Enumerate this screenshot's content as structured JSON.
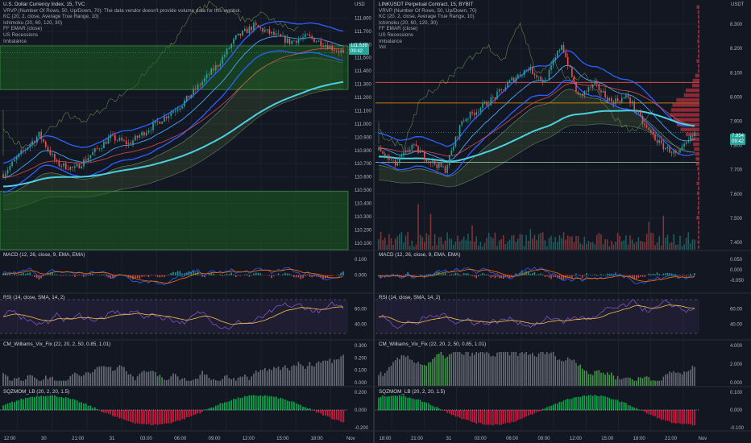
{
  "colors": {
    "background": "#131722",
    "grid": "#1e222d",
    "panel_separator": "#2a2e39",
    "up_candle": "#26a69a",
    "down_candle": "#ef5350",
    "keltner": "#2962ff",
    "ema_cyan": "#4dd0e1",
    "ichimoku_cloud": "#8bc34a",
    "macd_line": "#2962ff",
    "signal_line": "#ff6d00",
    "rsi_line": "#7e57c2",
    "rsi_ma": "#f6c343",
    "vix_gray": "#787b86",
    "vix_green": "#4caf50",
    "sqz_green": "#00c853",
    "sqz_red": "#ff1744",
    "price_tag": "#26a69a",
    "volume_profile": "#f23645"
  },
  "left": {
    "title": "U.S. Dollar Currency Index, 15, TVC",
    "indicators": [
      "VRVP (Number Of Rows, 50, Up/Down, 70): The data vendor doesn't provide volume data for this symbol.",
      "KC (20, 2, close, Average True Range, 10)",
      "Ichimoku (20, 60, 120, 30)",
      "FF EMAR (close)",
      "US Recessions",
      "Imbalance"
    ],
    "currency": "USD",
    "price_axis": [
      "111.800",
      "111.700",
      "111.600",
      "111.500",
      "111.400",
      "111.300",
      "111.200",
      "111.100",
      "111.000",
      "110.900",
      "110.800",
      "110.700",
      "110.600",
      "110.500",
      "110.400",
      "110.300",
      "110.200",
      "110.100"
    ],
    "last_price": "111.539",
    "countdown": "09:42",
    "time_axis": [
      "12:00",
      "30",
      "21:00",
      "31",
      "03:00",
      "06:00",
      "09:00",
      "12:00",
      "15:00",
      "18:00",
      "Nov"
    ],
    "macd": {
      "label": "MACD (12, 26, close, 9, EMA, EMA)",
      "axis": [
        "0.100",
        "0.000"
      ]
    },
    "rsi": {
      "label": "RSI (14, close, SMA, 14, 2)",
      "axis": [
        "60.00",
        "40.00"
      ]
    },
    "vix": {
      "label": "CM_Williams_Vix_Fix (22, 20, 2, 50, 0.85, 1.01)",
      "axis": [
        "0.300",
        "0.200",
        "0.100",
        "0.000"
      ]
    },
    "sqz": {
      "label": "SQZMOM_LB (20, 2, 20, 1.5)",
      "axis": [
        "0.200",
        "0.000",
        "-0.200"
      ]
    }
  },
  "right": {
    "title": "LINKUSDT Perpetual Contract, 15, BYBIT",
    "indicators": [
      "VRVP (Number Of Rows, 50, Up/Down, 70)",
      "KC (20, 2, close, Average True Range, 10)",
      "Ichimoku (20, 60, 120, 30)",
      "FF EMAR (close)",
      "US Recessions",
      "Imbalance",
      "Vol"
    ],
    "currency": "USDT",
    "price_axis": [
      "8.300",
      "8.200",
      "8.100",
      "8.000",
      "7.900",
      "7.800",
      "7.700",
      "7.600",
      "7.500",
      "7.400"
    ],
    "last_price": "7.854",
    "countdown": "09:42",
    "time_axis": [
      "18:00",
      "21:00",
      "31",
      "03:00",
      "06:00",
      "09:00",
      "12:00",
      "15:00",
      "18:00",
      "21:00",
      "Nov"
    ],
    "macd": {
      "label": "MACD (12, 26, close, 9, EMA, EMA)",
      "axis": [
        "0.050",
        "0.000",
        "-0.050"
      ]
    },
    "rsi": {
      "label": "RSI (14, close, SMA, 14, 2)",
      "axis": [
        "60.00",
        "40.00"
      ]
    },
    "vix": {
      "label": "CM_Williams_Vix_Fix (22, 20, 2, 50, 0.85, 1.01)",
      "axis": [
        "4.000",
        "2.000",
        "0.000"
      ]
    },
    "sqz": {
      "label": "SQZMOM_LB (20, 2, 20, 1.5)",
      "axis": [
        "0.100",
        "0.000",
        "-0.100"
      ]
    }
  },
  "chart_data": [
    {
      "type": "candlestick",
      "title": "U.S. Dollar Currency Index, 15, TVC",
      "ylim": [
        110.05,
        111.9
      ],
      "last": 111.539,
      "path": [
        [
          0,
          110.62
        ],
        [
          8,
          110.78
        ],
        [
          16,
          110.92
        ],
        [
          24,
          110.7
        ],
        [
          32,
          110.66
        ],
        [
          40,
          110.78
        ],
        [
          48,
          110.9
        ],
        [
          56,
          110.85
        ],
        [
          64,
          110.95
        ],
        [
          72,
          111.05
        ],
        [
          80,
          111.15
        ],
        [
          88,
          111.3
        ],
        [
          96,
          111.45
        ],
        [
          104,
          111.65
        ],
        [
          112,
          111.74
        ],
        [
          120,
          111.68
        ],
        [
          128,
          111.62
        ],
        [
          136,
          111.66
        ],
        [
          144,
          111.6
        ],
        [
          150,
          111.55
        ]
      ]
    },
    {
      "type": "candlestick",
      "title": "LINKUSDT Perpetual Contract, 15, BYBIT",
      "ylim": [
        7.37,
        8.38
      ],
      "last": 7.854,
      "path": [
        [
          0,
          7.78
        ],
        [
          8,
          7.72
        ],
        [
          16,
          7.8
        ],
        [
          24,
          7.74
        ],
        [
          32,
          7.7
        ],
        [
          40,
          7.9
        ],
        [
          48,
          7.95
        ],
        [
          56,
          8.0
        ],
        [
          64,
          8.07
        ],
        [
          72,
          8.12
        ],
        [
          80,
          8.06
        ],
        [
          88,
          8.22
        ],
        [
          96,
          8.0
        ],
        [
          104,
          8.05
        ],
        [
          112,
          7.98
        ],
        [
          120,
          8.0
        ],
        [
          128,
          7.88
        ],
        [
          136,
          7.8
        ],
        [
          144,
          7.76
        ],
        [
          152,
          7.85
        ]
      ]
    }
  ]
}
